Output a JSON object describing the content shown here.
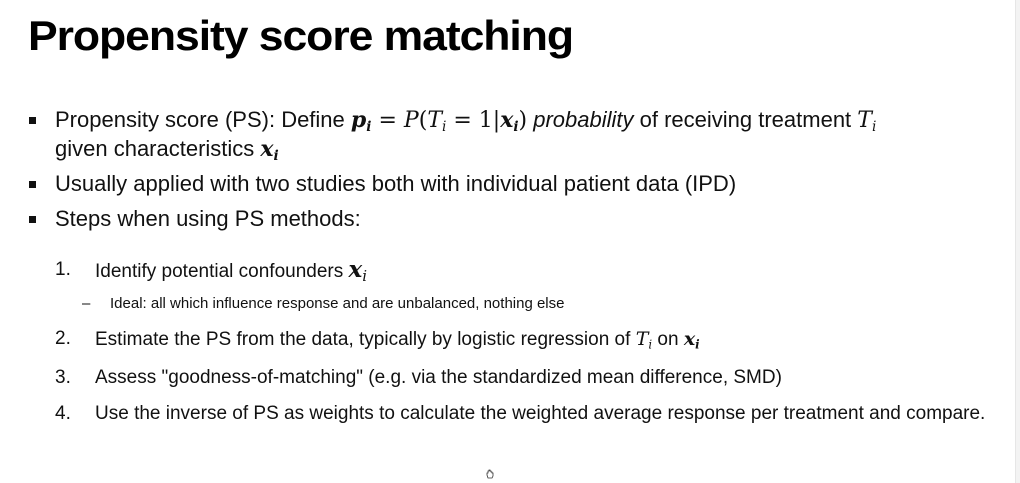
{
  "slide": {
    "title": "Propensity score matching",
    "bullets": {
      "b1": {
        "prefix": "Propensity score (PS): Define ",
        "p": "p",
        "i": "i",
        "eq": " = ",
        "P": "P",
        "open": "(",
        "T": "T",
        "eq1": " = 1|",
        "x": "x",
        "close": ")",
        "probability": "probability",
        "mid": " of receiving treatment ",
        "line2_prefix": "given characteristics "
      },
      "b2": "Usually applied with two studies both with individual patient data (IPD)",
      "b3": "Steps when using PS methods:"
    },
    "steps": {
      "s1": {
        "num": "1.",
        "text": "Identify potential confounders ",
        "x": "x",
        "i": "i"
      },
      "s1_sub": {
        "dash": "–",
        "text": "Ideal: all which influence response and are unbalanced, nothing else"
      },
      "s2": {
        "num": "2.",
        "text": "Estimate the PS from the data, typically by logistic regression of ",
        "T": "T",
        "i": "i",
        "on": " on ",
        "x": "x"
      },
      "s3": {
        "num": "3.",
        "text": "Assess \"goodness-of-matching\" (e.g. via the standardized mean difference, SMD)"
      },
      "s4": {
        "num": "4.",
        "text": "Use the inverse of PS as weights to calculate the weighted average response per treatment and compare."
      }
    },
    "icons": {
      "bullet": "square-bullet-icon",
      "cursor": "hand-cursor-icon"
    },
    "colors": {
      "text": "#111111",
      "background": "#ffffff"
    }
  }
}
